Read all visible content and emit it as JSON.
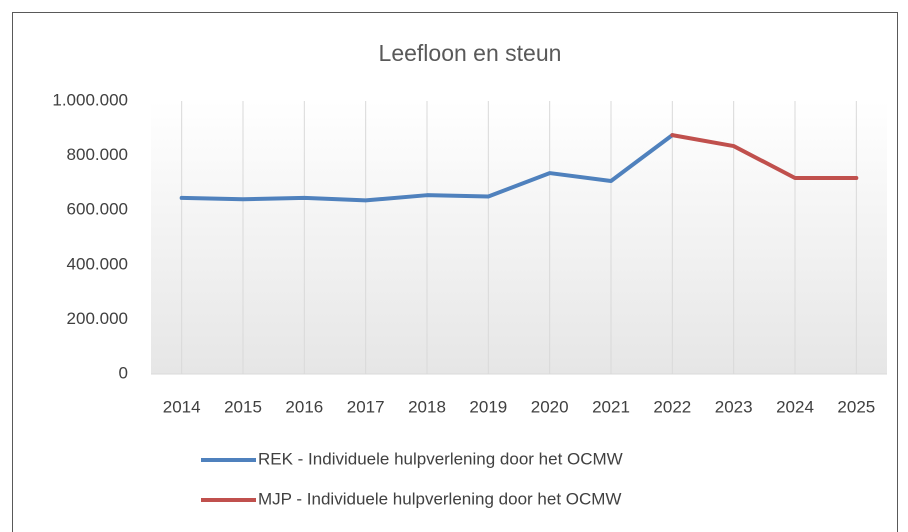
{
  "chart_data": {
    "type": "line",
    "title": "Leefloon en steun",
    "categories": [
      "2014",
      "2015",
      "2016",
      "2017",
      "2018",
      "2019",
      "2020",
      "2021",
      "2022",
      "2023",
      "2024",
      "2025"
    ],
    "series": [
      {
        "name": "REK - Individuele hulpverlening door het OCMW",
        "color": "#4f81bd",
        "values": [
          645000,
          640000,
          645000,
          636000,
          655000,
          650000,
          736000,
          707000,
          875000,
          null,
          null,
          null
        ]
      },
      {
        "name": "MJP - Individuele hulpverlening door het OCMW",
        "color": "#c0504d",
        "values": [
          null,
          null,
          null,
          null,
          null,
          null,
          null,
          null,
          875000,
          835000,
          718000,
          718000
        ]
      }
    ],
    "ylim": [
      0,
      1000000
    ],
    "yticks": [
      0,
      {
        "value": 200000,
        "label": "200.000"
      },
      {
        "value": 400000,
        "label": "400.000"
      },
      {
        "value": 600000,
        "label": "600.000"
      },
      {
        "value": 800000,
        "label": "800.000"
      },
      {
        "value": 1000000,
        "label": "1.000.000"
      }
    ],
    "grid": "vertical",
    "legend": "bottom"
  }
}
